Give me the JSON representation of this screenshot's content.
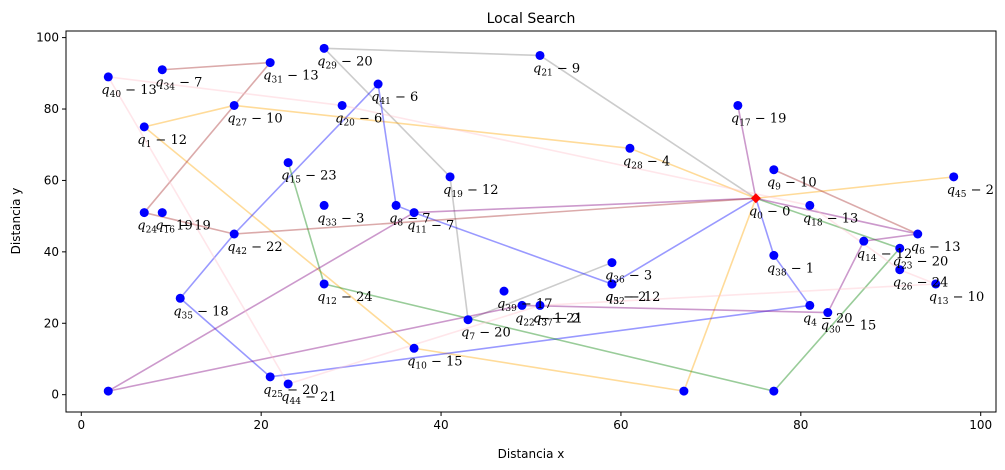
{
  "chart_data": {
    "type": "scatter",
    "title": "Local Search",
    "xlabel": "Distancia x",
    "ylabel": "Distancia y",
    "xlim": [
      -1.7,
      101.7
    ],
    "ylim": [
      -4.85,
      101.85
    ],
    "xticks": [
      0,
      20,
      40,
      60,
      80,
      100
    ],
    "yticks": [
      0,
      20,
      40,
      60,
      80,
      100
    ],
    "grid": false,
    "point_color": "#0000ff",
    "depot_color": "#ff0000",
    "points": [
      {
        "id": 0,
        "label": "q_0 − 0",
        "sub": "0",
        "rest": "− 0",
        "x": 75,
        "y": 55,
        "depot": true
      },
      {
        "id": 1,
        "label": "q_1 − 12",
        "sub": "1",
        "rest": "− 12",
        "x": 7,
        "y": 75
      },
      {
        "id": 4,
        "label": "q_4 − 20",
        "sub": "4",
        "rest": "− 20",
        "x": 81,
        "y": 25
      },
      {
        "id": 5,
        "label": "q_5 − 2",
        "sub": "5",
        "rest": "− 2",
        "x": 59,
        "y": 31
      },
      {
        "id": 6,
        "label": "q_6 − 13",
        "sub": "6",
        "rest": "− 13",
        "x": 93,
        "y": 45
      },
      {
        "id": 7,
        "label": "q_7 − 20",
        "sub": "7",
        "rest": "− 20",
        "x": 43,
        "y": 21
      },
      {
        "id": 8,
        "label": "q_8 − 7",
        "sub": "8",
        "rest": "− 7",
        "x": 35,
        "y": 53
      },
      {
        "id": 9,
        "label": "q_9 − 10",
        "sub": "9",
        "rest": "− 10",
        "x": 77,
        "y": 63
      },
      {
        "id": 10,
        "label": "q_10 − 15",
        "sub": "10",
        "rest": "− 15",
        "x": 37,
        "y": 13
      },
      {
        "id": 11,
        "label": "q_11 − 7",
        "sub": "11",
        "rest": "− 7",
        "x": 37,
        "y": 51
      },
      {
        "id": 12,
        "label": "q_12 − 24",
        "sub": "12",
        "rest": "− 24",
        "x": 27,
        "y": 31
      },
      {
        "id": 13,
        "label": "q_13 − 10",
        "sub": "13",
        "rest": "− 10",
        "x": 95,
        "y": 31
      },
      {
        "id": 14,
        "label": "q_14 − 12",
        "sub": "14",
        "rest": "− 12",
        "x": 87,
        "y": 43
      },
      {
        "id": 15,
        "label": "q_15 − 23",
        "sub": "15",
        "rest": "− 23",
        "x": 23,
        "y": 65
      },
      {
        "id": 16,
        "label": "q_16 − 19",
        "sub": "16",
        "rest": "− 19",
        "x": 9,
        "y": 51
      },
      {
        "id": 17,
        "label": "q_17 − 19",
        "sub": "17",
        "rest": "− 19",
        "x": 73,
        "y": 81
      },
      {
        "id": 18,
        "label": "q_18 − 13",
        "sub": "18",
        "rest": "− 13",
        "x": 81,
        "y": 53
      },
      {
        "id": 19,
        "label": "q_19 − 12",
        "sub": "19",
        "rest": "− 12",
        "x": 41,
        "y": 61
      },
      {
        "id": 20,
        "label": "q_20 − 6",
        "sub": "20",
        "rest": "− 6",
        "x": 29,
        "y": 81
      },
      {
        "id": 21,
        "label": "q_21 − 9",
        "sub": "21",
        "rest": "− 9",
        "x": 51,
        "y": 95
      },
      {
        "id": 22,
        "label": "q_22 − 1",
        "sub": "22",
        "rest": "− 1",
        "x": 49,
        "y": 25
      },
      {
        "id": 23,
        "label": "q_23 − 20",
        "sub": "23",
        "rest": "− 20",
        "x": 91,
        "y": 41
      },
      {
        "id": 24,
        "label": "q_24 − 19",
        "sub": "24",
        "rest": "− 19",
        "x": 7,
        "y": 51
      },
      {
        "id": 25,
        "label": "q_25 − 20",
        "sub": "25",
        "rest": "− 20",
        "x": 21,
        "y": 5
      },
      {
        "id": 26,
        "label": "q_26 − 24",
        "sub": "26",
        "rest": "− 24",
        "x": 91,
        "y": 35
      },
      {
        "id": 27,
        "label": "q_27 − 10",
        "sub": "27",
        "rest": "− 10",
        "x": 17,
        "y": 81
      },
      {
        "id": 28,
        "label": "q_28 − 4",
        "sub": "28",
        "rest": "− 4",
        "x": 61,
        "y": 69
      },
      {
        "id": 29,
        "label": "q_29 − 20",
        "sub": "29",
        "rest": "− 20",
        "x": 27,
        "y": 97
      },
      {
        "id": 30,
        "label": "q_30 − 15",
        "sub": "30",
        "rest": "− 15",
        "x": 83,
        "y": 23
      },
      {
        "id": 31,
        "label": "q_31 − 13",
        "sub": "31",
        "rest": "− 13",
        "x": 21,
        "y": 93
      },
      {
        "id": 32,
        "label": "q_32 − 12",
        "sub": "32",
        "rest": "− 12",
        "x": 59,
        "y": 31
      },
      {
        "id": 33,
        "label": "q_33 − 3",
        "sub": "33",
        "rest": "− 3",
        "x": 27,
        "y": 53
      },
      {
        "id": 34,
        "label": "q_34 − 7",
        "sub": "34",
        "rest": "− 7",
        "x": 9,
        "y": 91
      },
      {
        "id": 35,
        "label": "q_35 − 18",
        "sub": "35",
        "rest": "− 18",
        "x": 11,
        "y": 27
      },
      {
        "id": 36,
        "label": "q_36 − 3",
        "sub": "36",
        "rest": "− 3",
        "x": 59,
        "y": 37
      },
      {
        "id": 37,
        "label": "q_37 − 2",
        "sub": "37",
        "rest": "− 2",
        "x": 51,
        "y": 25
      },
      {
        "id": 38,
        "label": "q_38 − 1",
        "sub": "38",
        "rest": "− 1",
        "x": 77,
        "y": 39
      },
      {
        "id": 39,
        "label": "q_39 − 17",
        "sub": "39",
        "rest": "− 17",
        "x": 47,
        "y": 29
      },
      {
        "id": 40,
        "label": "q_40 − 13",
        "sub": "40",
        "rest": "− 13",
        "x": 3,
        "y": 89
      },
      {
        "id": 41,
        "label": "q_41 − 6",
        "sub": "41",
        "rest": "− 6",
        "x": 33,
        "y": 87
      },
      {
        "id": 42,
        "label": "q_42 − 22",
        "sub": "42",
        "rest": "− 22",
        "x": 17,
        "y": 45
      },
      {
        "id": 44,
        "label": "q_44 − 21",
        "sub": "44",
        "rest": "− 21",
        "x": 23,
        "y": 3
      },
      {
        "id": 45,
        "label": "q_45 − 2",
        "sub": "45",
        "rest": "− 2",
        "x": 97,
        "y": 61
      },
      {
        "id": 46,
        "label": "q_3 − 21",
        "sub": "3",
        "rest": "− 21",
        "x": 51,
        "y": 25,
        "hidden_marker": true
      },
      {
        "id": 47,
        "label": "",
        "x": 67,
        "y": 1
      },
      {
        "id": 48,
        "label": "",
        "x": 77,
        "y": 1
      },
      {
        "id": 49,
        "label": "",
        "x": 3,
        "y": 1
      }
    ],
    "routes": [
      {
        "color": "#808080",
        "path": [
          [
            75,
            55
          ],
          [
            33,
            87
          ],
          [
            35,
            53
          ],
          [
            41,
            61
          ],
          [
            43,
            21
          ],
          [
            59,
            37
          ],
          [
            59,
            31
          ],
          [
            43,
            21
          ],
          [
            41,
            61
          ],
          [
            27,
            97
          ],
          [
            51,
            95
          ],
          [
            75,
            55
          ]
        ],
        "segments": [
          [
            [
              75,
              55
            ],
            [
              51,
              95
            ]
          ],
          [
            [
              51,
              95
            ],
            [
              27,
              97
            ]
          ],
          [
            [
              27,
              97
            ],
            [
              41,
              61
            ]
          ],
          [
            [
              41,
              61
            ],
            [
              43,
              21
            ]
          ],
          [
            [
              43,
              21
            ],
            [
              59,
              37
            ]
          ]
        ]
      },
      {
        "color": "#ffa500",
        "segments": [
          [
            [
              75,
              55
            ],
            [
              61,
              69
            ]
          ],
          [
            [
              61,
              69
            ],
            [
              17,
              81
            ]
          ],
          [
            [
              17,
              81
            ],
            [
              7,
              75
            ]
          ],
          [
            [
              7,
              75
            ],
            [
              37,
              13
            ]
          ],
          [
            [
              37,
              13
            ],
            [
              67,
              1
            ]
          ],
          [
            [
              67,
              1
            ],
            [
              75,
              55
            ]
          ],
          [
            [
              75,
              55
            ],
            [
              97,
              61
            ]
          ]
        ]
      },
      {
        "color": "#0000ff",
        "segments": [
          [
            [
              75,
              55
            ],
            [
              59,
              31
            ]
          ],
          [
            [
              59,
              31
            ],
            [
              37,
              51
            ]
          ],
          [
            [
              37,
              51
            ],
            [
              35,
              53
            ]
          ],
          [
            [
              35,
              53
            ],
            [
              33,
              87
            ]
          ],
          [
            [
              33,
              87
            ],
            [
              17,
              45
            ]
          ],
          [
            [
              17,
              45
            ],
            [
              11,
              27
            ]
          ],
          [
            [
              11,
              27
            ],
            [
              21,
              5
            ]
          ],
          [
            [
              21,
              5
            ],
            [
              81,
              25
            ]
          ],
          [
            [
              81,
              25
            ],
            [
              77,
              39
            ]
          ],
          [
            [
              77,
              39
            ],
            [
              75,
              55
            ]
          ]
        ]
      },
      {
        "color": "#008000",
        "segments": [
          [
            [
              75,
              55
            ],
            [
              91,
              41
            ]
          ],
          [
            [
              91,
              41
            ],
            [
              77,
              1
            ]
          ],
          [
            [
              77,
              1
            ],
            [
              27,
              31
            ]
          ],
          [
            [
              27,
              31
            ],
            [
              23,
              65
            ]
          ]
        ]
      },
      {
        "color": "#800080",
        "segments": [
          [
            [
              75,
              55
            ],
            [
              93,
              45
            ]
          ],
          [
            [
              93,
              45
            ],
            [
              87,
              43
            ]
          ],
          [
            [
              87,
              43
            ],
            [
              83,
              23
            ]
          ],
          [
            [
              83,
              23
            ],
            [
              49,
              25
            ]
          ],
          [
            [
              49,
              25
            ],
            [
              3,
              1
            ]
          ],
          [
            [
              3,
              1
            ],
            [
              37,
              51
            ]
          ],
          [
            [
              37,
              51
            ],
            [
              75,
              55
            ]
          ],
          [
            [
              75,
              55
            ],
            [
              73,
              81
            ]
          ]
        ]
      },
      {
        "color": "#a52a2a",
        "segments": [
          [
            [
              75,
              55
            ],
            [
              17,
              45
            ]
          ],
          [
            [
              17,
              45
            ],
            [
              7,
              51
            ]
          ],
          [
            [
              7,
              51
            ],
            [
              21,
              93
            ]
          ],
          [
            [
              21,
              93
            ],
            [
              9,
              91
            ]
          ],
          [
            [
              9,
              91
            ],
            [
              9,
              91
            ]
          ],
          [
            [
              77,
              63
            ],
            [
              93,
              45
            ]
          ]
        ]
      },
      {
        "color": "#ffc0cb",
        "segments": [
          [
            [
              3,
              89
            ],
            [
              23,
              3
            ]
          ],
          [
            [
              23,
              3
            ],
            [
              51,
              25
            ]
          ],
          [
            [
              51,
              25
            ],
            [
              95,
              31
            ]
          ],
          [
            [
              95,
              31
            ],
            [
              91,
              35
            ]
          ],
          [
            [
              3,
              89
            ],
            [
              29,
              81
            ]
          ],
          [
            [
              29,
              81
            ],
            [
              81,
              53
            ]
          ],
          [
            [
              81,
              53
            ],
            [
              91,
              35
            ]
          ]
        ]
      }
    ]
  }
}
